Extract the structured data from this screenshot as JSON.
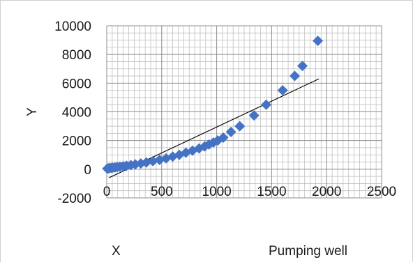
{
  "chart_data": {
    "type": "scatter",
    "xlabel": "X",
    "ylabel": "Y",
    "caption": "Pumping well",
    "xlim": [
      0,
      2500
    ],
    "ylim": [
      -2000,
      10000
    ],
    "xticks": [
      0,
      500,
      1000,
      1500,
      2000,
      2500
    ],
    "yticks": [
      -2000,
      0,
      2000,
      4000,
      6000,
      8000,
      10000
    ],
    "x_minor_step": 50,
    "y_minor_step": 500,
    "grid": true,
    "legend": "none",
    "colors": {
      "marker": "#4472c4",
      "trendline": "#000000",
      "grid": "#bfbfbf",
      "grid_major": "#8c8c8c"
    },
    "series": [
      {
        "values": [
          [
            5,
            40
          ],
          [
            15,
            60
          ],
          [
            25,
            75
          ],
          [
            40,
            90
          ],
          [
            55,
            105
          ],
          [
            75,
            125
          ],
          [
            95,
            150
          ],
          [
            120,
            175
          ],
          [
            150,
            205
          ],
          [
            180,
            240
          ],
          [
            220,
            290
          ],
          [
            260,
            340
          ],
          [
            310,
            400
          ],
          [
            360,
            470
          ],
          [
            420,
            560
          ],
          [
            480,
            650
          ],
          [
            540,
            760
          ],
          [
            600,
            880
          ],
          [
            660,
            1000
          ],
          [
            720,
            1150
          ],
          [
            780,
            1290
          ],
          [
            840,
            1450
          ],
          [
            890,
            1580
          ],
          [
            930,
            1720
          ],
          [
            970,
            1860
          ],
          [
            1010,
            2000
          ],
          [
            1060,
            2200
          ],
          [
            1130,
            2600
          ],
          [
            1210,
            3000
          ],
          [
            1340,
            3750
          ],
          [
            1450,
            4500
          ],
          [
            1600,
            5500
          ],
          [
            1710,
            6500
          ],
          [
            1780,
            7200
          ],
          [
            1920,
            8950
          ]
        ]
      }
    ],
    "trendline": {
      "x": [
        20,
        1930
      ],
      "y": [
        -600,
        6300
      ]
    }
  }
}
